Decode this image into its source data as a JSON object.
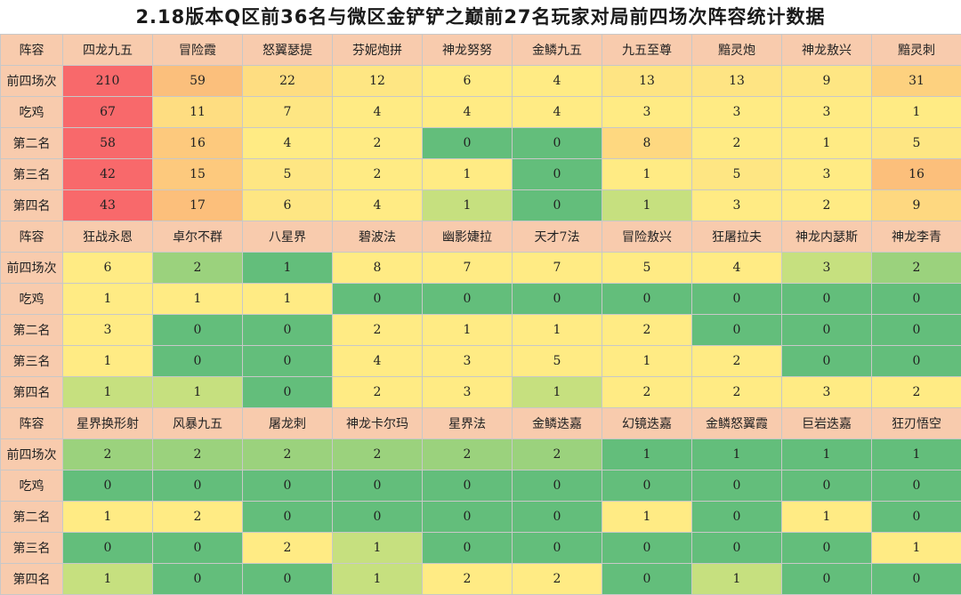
{
  "title": "2.18版本Q区前36名与微区金铲铲之巅前27名玩家对局前四场次阵容统计数据",
  "chart_data": {
    "type": "table",
    "header_label": "阵容",
    "row_labels": [
      "前四场次",
      "吃鸡",
      "第二名",
      "第三名",
      "第四名"
    ],
    "header_color": "#f8cbad",
    "groups": [
      {
        "lineups": [
          "四龙九五",
          "冒险霞",
          "怒翼瑟提",
          "芬妮炮拼",
          "神龙努努",
          "金鳞九五",
          "九五至尊",
          "黯灵炮",
          "神龙敖兴",
          "黯灵刺"
        ],
        "rows": [
          [
            210,
            59,
            22,
            12,
            6,
            4,
            13,
            13,
            9,
            31
          ],
          [
            67,
            11,
            7,
            4,
            4,
            4,
            3,
            3,
            3,
            1
          ],
          [
            58,
            16,
            4,
            2,
            0,
            0,
            8,
            2,
            1,
            5
          ],
          [
            42,
            15,
            5,
            2,
            1,
            0,
            1,
            5,
            3,
            16
          ],
          [
            43,
            17,
            6,
            4,
            1,
            0,
            1,
            3,
            2,
            9
          ]
        ],
        "colors": [
          [
            "#f8696b",
            "#fbbf7c",
            "#fedd81",
            "#fee683",
            "#ffeb84",
            "#ffeb84",
            "#fee483",
            "#fee483",
            "#fee683",
            "#fdd17f"
          ],
          [
            "#f8696b",
            "#fedd81",
            "#fee683",
            "#ffeb84",
            "#ffeb84",
            "#ffeb84",
            "#ffeb84",
            "#ffeb84",
            "#ffeb84",
            "#ffeb84"
          ],
          [
            "#f8696b",
            "#fdc97d",
            "#ffeb84",
            "#ffeb84",
            "#63be7b",
            "#63be7b",
            "#fed880",
            "#ffeb84",
            "#ffeb84",
            "#fee683"
          ],
          [
            "#f8696b",
            "#fdc97d",
            "#fee683",
            "#ffeb84",
            "#ffeb84",
            "#63be7b",
            "#ffeb84",
            "#fee683",
            "#ffeb84",
            "#fcbf7b"
          ],
          [
            "#f8696b",
            "#fcbf7b",
            "#fee683",
            "#ffeb84",
            "#c6e07f",
            "#63be7b",
            "#c6e07f",
            "#ffeb84",
            "#ffeb84",
            "#fed880"
          ]
        ]
      },
      {
        "lineups": [
          "狂战永恩",
          "卓尔不群",
          "八星界",
          "碧波法",
          "幽影婕拉",
          "天才7法",
          "冒险敖兴",
          "狂屠拉夫",
          "神龙内瑟斯",
          "神龙李青"
        ],
        "rows": [
          [
            6,
            2,
            1,
            8,
            7,
            7,
            5,
            4,
            3,
            2
          ],
          [
            1,
            1,
            1,
            0,
            0,
            0,
            0,
            0,
            0,
            0
          ],
          [
            3,
            0,
            0,
            2,
            1,
            1,
            2,
            0,
            0,
            0
          ],
          [
            1,
            0,
            0,
            4,
            3,
            5,
            1,
            2,
            0,
            0
          ],
          [
            1,
            1,
            0,
            2,
            3,
            1,
            2,
            2,
            3,
            2
          ]
        ],
        "colors": [
          [
            "#ffeb84",
            "#9bd27d",
            "#63be7b",
            "#ffeb84",
            "#ffeb84",
            "#ffeb84",
            "#ffeb84",
            "#ffeb84",
            "#c6e07f",
            "#9bd27d"
          ],
          [
            "#ffeb84",
            "#ffeb84",
            "#ffeb84",
            "#63be7b",
            "#63be7b",
            "#63be7b",
            "#63be7b",
            "#63be7b",
            "#63be7b",
            "#63be7b"
          ],
          [
            "#ffeb84",
            "#63be7b",
            "#63be7b",
            "#ffeb84",
            "#ffeb84",
            "#ffeb84",
            "#ffeb84",
            "#63be7b",
            "#63be7b",
            "#63be7b"
          ],
          [
            "#ffeb84",
            "#63be7b",
            "#63be7b",
            "#ffeb84",
            "#ffeb84",
            "#ffeb84",
            "#ffeb84",
            "#ffeb84",
            "#63be7b",
            "#63be7b"
          ],
          [
            "#c6e07f",
            "#c6e07f",
            "#63be7b",
            "#ffeb84",
            "#ffeb84",
            "#c6e07f",
            "#ffeb84",
            "#ffeb84",
            "#ffeb84",
            "#ffeb84"
          ]
        ]
      },
      {
        "lineups": [
          "星界换形射",
          "风暴九五",
          "屠龙刺",
          "神龙卡尔玛",
          "星界法",
          "金鳞迭嘉",
          "幻镜迭嘉",
          "金鳞怒翼霞",
          "巨岩迭嘉",
          "狂刃悟空"
        ],
        "rows": [
          [
            2,
            2,
            2,
            2,
            2,
            2,
            1,
            1,
            1,
            1
          ],
          [
            0,
            0,
            0,
            0,
            0,
            0,
            0,
            0,
            0,
            0
          ],
          [
            1,
            2,
            0,
            0,
            0,
            0,
            1,
            0,
            1,
            0
          ],
          [
            0,
            0,
            2,
            1,
            0,
            0,
            0,
            0,
            0,
            1
          ],
          [
            1,
            0,
            0,
            1,
            2,
            2,
            0,
            1,
            0,
            0
          ]
        ],
        "colors": [
          [
            "#9bd27d",
            "#9bd27d",
            "#9bd27d",
            "#9bd27d",
            "#9bd27d",
            "#9bd27d",
            "#63be7b",
            "#63be7b",
            "#63be7b",
            "#63be7b"
          ],
          [
            "#63be7b",
            "#63be7b",
            "#63be7b",
            "#63be7b",
            "#63be7b",
            "#63be7b",
            "#63be7b",
            "#63be7b",
            "#63be7b",
            "#63be7b"
          ],
          [
            "#ffeb84",
            "#ffeb84",
            "#63be7b",
            "#63be7b",
            "#63be7b",
            "#63be7b",
            "#ffeb84",
            "#63be7b",
            "#ffeb84",
            "#63be7b"
          ],
          [
            "#63be7b",
            "#63be7b",
            "#ffeb84",
            "#c6e07f",
            "#63be7b",
            "#63be7b",
            "#63be7b",
            "#63be7b",
            "#63be7b",
            "#ffeb84"
          ],
          [
            "#c6e07f",
            "#63be7b",
            "#63be7b",
            "#c6e07f",
            "#ffeb84",
            "#ffeb84",
            "#63be7b",
            "#c6e07f",
            "#63be7b",
            "#63be7b"
          ]
        ]
      }
    ]
  }
}
